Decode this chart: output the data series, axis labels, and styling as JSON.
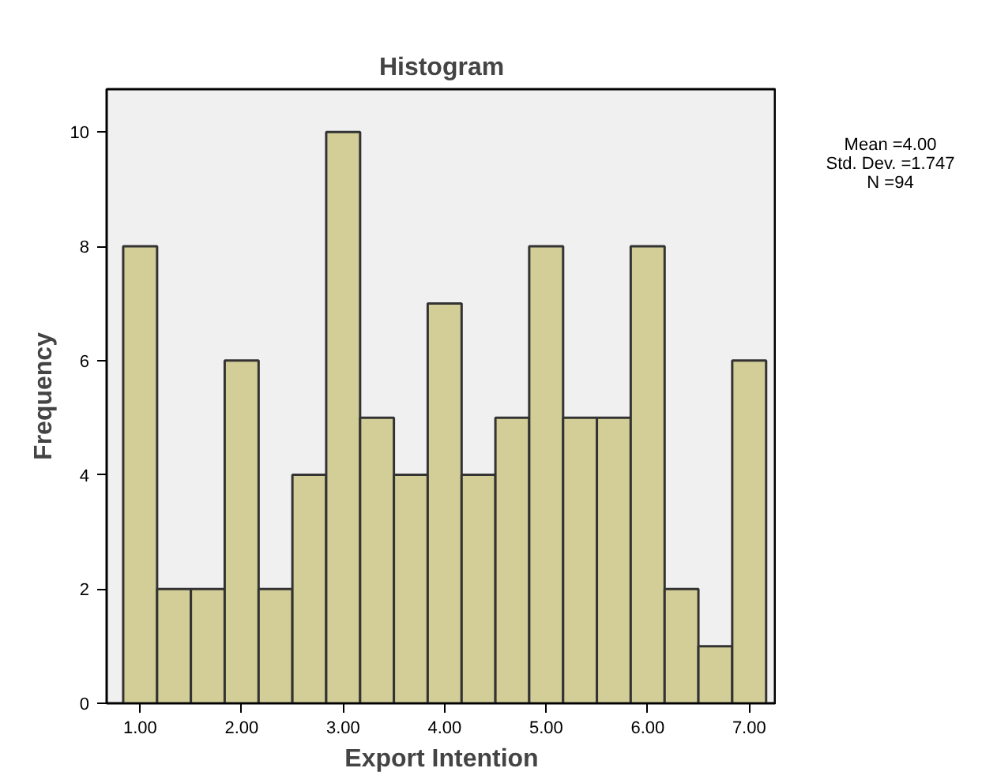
{
  "chart_data": {
    "type": "histogram",
    "title": "Histogram",
    "xlabel": "Export Intention",
    "ylabel": "Frequency",
    "bins": [
      0.833,
      1.167,
      1.5,
      1.833,
      2.167,
      2.5,
      2.833,
      3.167,
      3.5,
      3.833,
      4.167,
      4.5,
      4.833,
      5.167,
      5.5,
      5.833,
      6.167,
      6.5,
      6.833,
      7.167
    ],
    "values": [
      8,
      2,
      2,
      6,
      2,
      4,
      10,
      5,
      4,
      7,
      4,
      5,
      8,
      5,
      5,
      8,
      2,
      1,
      6
    ],
    "color": "#d3ce97",
    "xlim": [
      0.67,
      7.27
    ],
    "ylim": [
      0,
      10.75
    ],
    "xticks": [
      {
        "value": 1,
        "label": "1.00"
      },
      {
        "value": 2,
        "label": "2.00"
      },
      {
        "value": 3,
        "label": "3.00"
      },
      {
        "value": 4,
        "label": "4.00"
      },
      {
        "value": 5,
        "label": "5.00"
      },
      {
        "value": 6,
        "label": "6.00"
      },
      {
        "value": 7,
        "label": "7.00"
      }
    ],
    "yticks": [
      0,
      2,
      4,
      6,
      8,
      10
    ],
    "grid": false,
    "annotations": [
      "Mean =4.00",
      "Std. Dev. =1.747",
      "N =94"
    ]
  }
}
